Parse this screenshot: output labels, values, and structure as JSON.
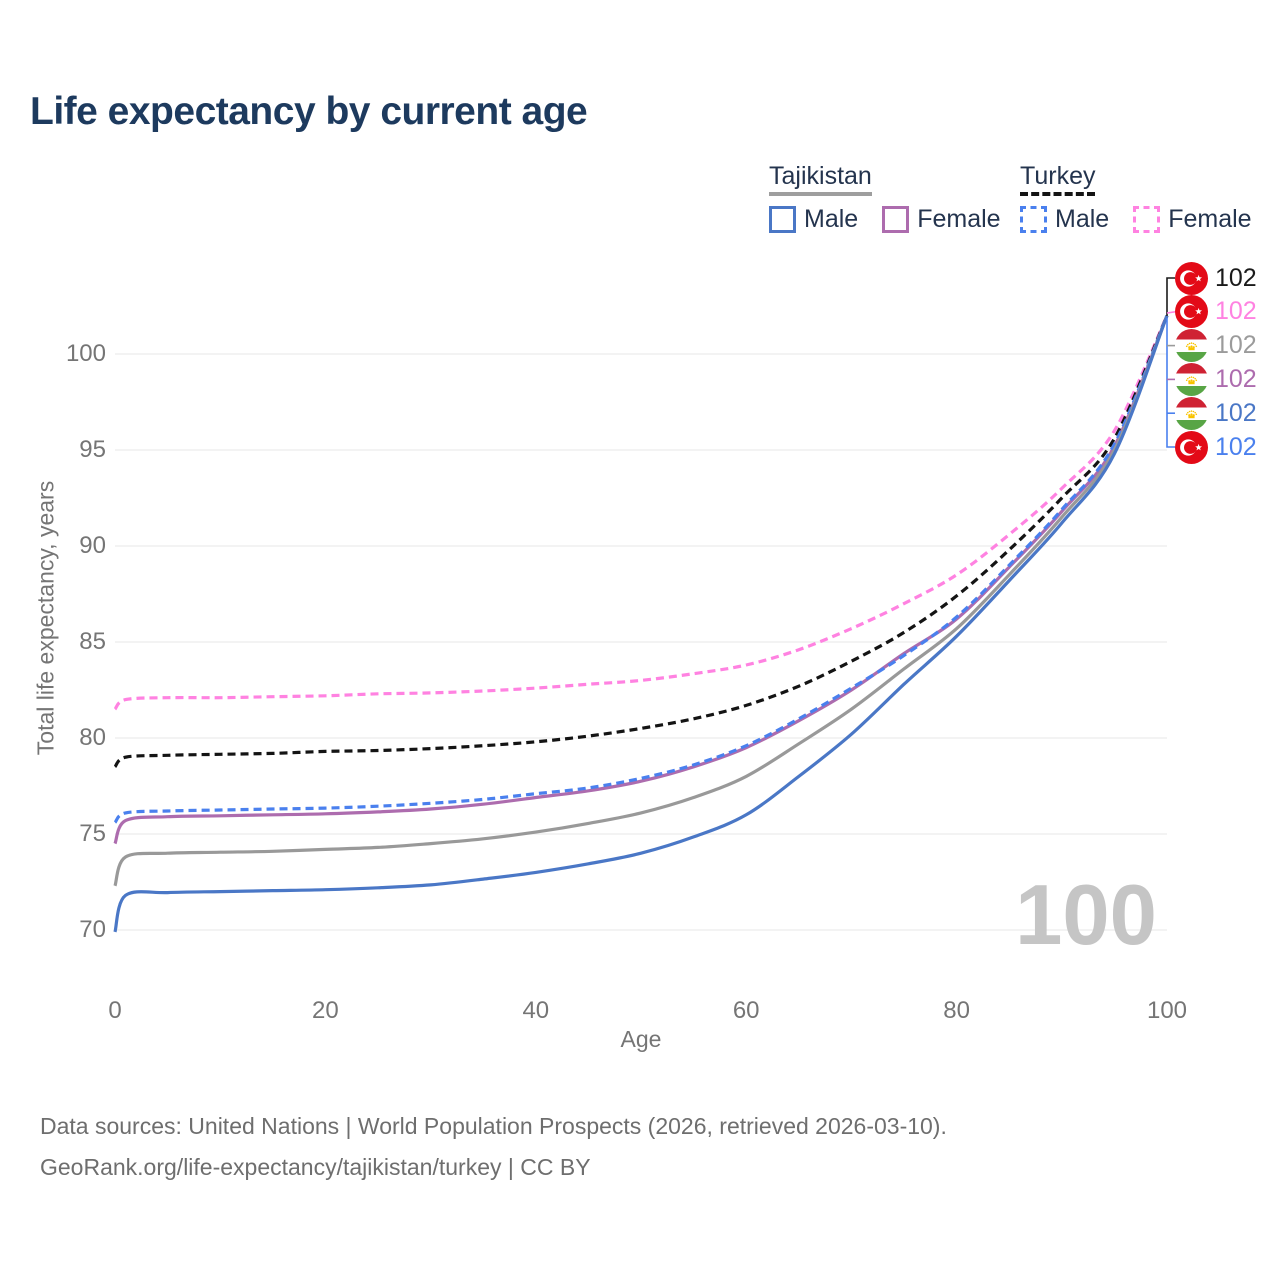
{
  "title": "Life expectancy by current age",
  "axes": {
    "x_label": "Age",
    "y_label": "Total life expectancy, years"
  },
  "watermark_age": "100",
  "legend": {
    "groups": [
      {
        "name": "Tajikistan",
        "line_style": "solid",
        "underline_color": "#9e9e9e",
        "items": [
          {
            "label": "Male",
            "color": "#4a77c6",
            "dash": false
          },
          {
            "label": "Female",
            "color": "#ad6cae",
            "dash": false
          }
        ]
      },
      {
        "name": "Turkey",
        "line_style": "dashed",
        "underline_color": "#141414",
        "items": [
          {
            "label": "Male",
            "color": "#4a80ee",
            "dash": true
          },
          {
            "label": "Female",
            "color": "#ff82e1",
            "dash": true
          }
        ]
      }
    ]
  },
  "end_labels": [
    {
      "value": "102",
      "flag": "turkey",
      "color": "#1a1a1a",
      "series": "Turkey Both sexes"
    },
    {
      "value": "102",
      "flag": "turkey",
      "color": "#ff82e1",
      "series": "Turkey Female"
    },
    {
      "value": "102",
      "flag": "tajikistan",
      "color": "#9b9b9b",
      "series": "Tajikistan Both sexes"
    },
    {
      "value": "102",
      "flag": "tajikistan",
      "color": "#ad6cae",
      "series": "Tajikistan Female"
    },
    {
      "value": "102",
      "flag": "tajikistan",
      "color": "#4a77c6",
      "series": "Tajikistan Male"
    },
    {
      "value": "102",
      "flag": "turkey",
      "color": "#4a80ee",
      "series": "Turkey Male"
    }
  ],
  "footer": {
    "line1": "Data sources: United Nations | World Population Prospects (2026, retrieved 2026-03-10).",
    "line2": "GeoRank.org/life-expectancy/tajikistan/turkey | CC BY"
  },
  "chart_data": {
    "type": "line",
    "title": "Life expectancy by current age",
    "xlabel": "Age",
    "ylabel": "Total life expectancy, years",
    "xlim": [
      0,
      100
    ],
    "ylim": [
      69,
      103
    ],
    "x_ticks": [
      0,
      20,
      40,
      60,
      80,
      100
    ],
    "y_ticks": [
      70,
      75,
      80,
      85,
      90,
      95,
      100
    ],
    "grid": "horizontal",
    "legend_position": "top-right",
    "current_age_marker": 100,
    "end_value_at_age_100": 102,
    "x": [
      0,
      1,
      5,
      10,
      15,
      20,
      25,
      30,
      35,
      40,
      45,
      50,
      55,
      60,
      65,
      70,
      75,
      80,
      85,
      90,
      95,
      100
    ],
    "series": [
      {
        "name": "Turkey Female",
        "country": "Turkey",
        "sex": "Female",
        "color": "#ff82e1",
        "dash": true,
        "values": [
          81.5,
          82.0,
          82.1,
          82.1,
          82.15,
          82.2,
          82.3,
          82.35,
          82.45,
          82.6,
          82.8,
          83.0,
          83.35,
          83.8,
          84.6,
          85.7,
          87.0,
          88.5,
          90.6,
          93.0,
          96.0,
          102
        ]
      },
      {
        "name": "Turkey Both sexes",
        "country": "Turkey",
        "sex": "Both",
        "color": "#141414",
        "dash": true,
        "values": [
          78.5,
          79.0,
          79.1,
          79.15,
          79.2,
          79.3,
          79.35,
          79.45,
          79.6,
          79.8,
          80.1,
          80.5,
          81.0,
          81.7,
          82.7,
          84.0,
          85.5,
          87.4,
          89.8,
          92.5,
          95.6,
          102
        ]
      },
      {
        "name": "Tajikistan Female",
        "country": "Tajikistan",
        "sex": "Female",
        "color": "#ad6cae",
        "dash": false,
        "values": [
          74.5,
          75.7,
          75.9,
          75.95,
          76.0,
          76.05,
          76.15,
          76.3,
          76.55,
          76.9,
          77.25,
          77.75,
          78.5,
          79.5,
          80.9,
          82.5,
          84.4,
          86.2,
          88.9,
          91.8,
          95.2,
          102
        ]
      },
      {
        "name": "Turkey Male",
        "country": "Turkey",
        "sex": "Male",
        "color": "#4a80ee",
        "dash": true,
        "values": [
          75.6,
          76.1,
          76.2,
          76.25,
          76.3,
          76.35,
          76.45,
          76.6,
          76.8,
          77.1,
          77.4,
          77.9,
          78.6,
          79.6,
          81.0,
          82.6,
          84.3,
          86.3,
          89.0,
          91.9,
          95.3,
          102
        ]
      },
      {
        "name": "Tajikistan Both sexes",
        "country": "Tajikistan",
        "sex": "Both",
        "color": "#999999",
        "dash": false,
        "values": [
          72.3,
          73.8,
          74.0,
          74.05,
          74.1,
          74.2,
          74.3,
          74.5,
          74.75,
          75.1,
          75.55,
          76.1,
          76.9,
          78.0,
          79.7,
          81.5,
          83.6,
          85.7,
          88.5,
          91.5,
          95.0,
          102
        ]
      },
      {
        "name": "Tajikistan Male",
        "country": "Tajikistan",
        "sex": "Male",
        "color": "#4a77c6",
        "dash": false,
        "values": [
          69.9,
          71.8,
          71.95,
          72.0,
          72.05,
          72.1,
          72.2,
          72.35,
          72.65,
          73.0,
          73.45,
          74.0,
          74.85,
          76.0,
          78.0,
          80.2,
          82.8,
          85.3,
          88.2,
          91.2,
          94.8,
          102
        ]
      }
    ]
  }
}
